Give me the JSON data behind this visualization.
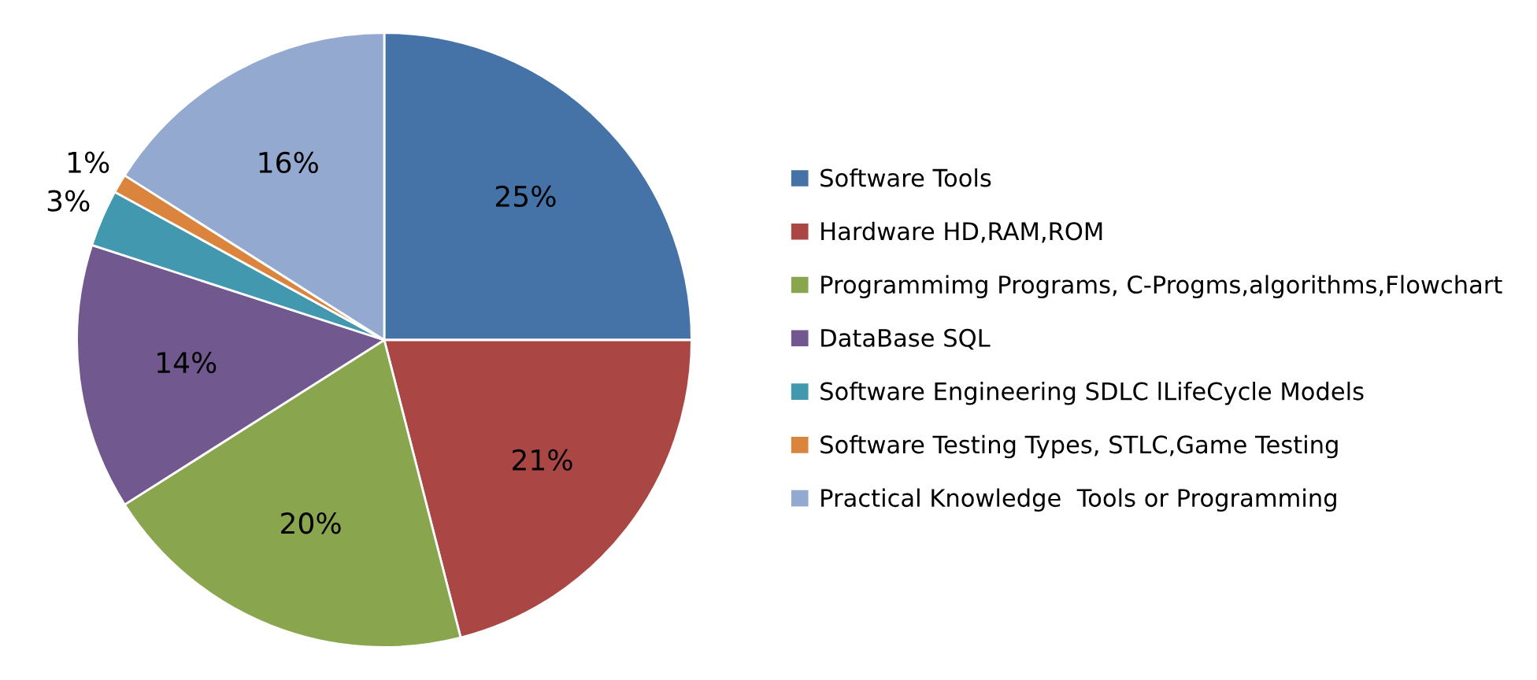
{
  "chart_data": {
    "type": "pie",
    "categories": [
      "Software Tools",
      "Hardware HD,RAM,ROM",
      "Programmimg Programs, C-Progms,algorithms,Flowchart",
      "DataBase SQL",
      "Software Engineering SDLC lLifeCycle Models",
      "Software Testing Types, STLC,Game Testing",
      "Practical Knowledge  Tools or Programming"
    ],
    "values": [
      25,
      21,
      20,
      14,
      3,
      1,
      16
    ],
    "colors": [
      "#4572a7",
      "#aa4643",
      "#89a54e",
      "#71588f",
      "#4198af",
      "#db843d",
      "#93a9cf"
    ],
    "value_labels": [
      "25%",
      "21%",
      "20%",
      "14%",
      "3%",
      "1%",
      "16%"
    ],
    "legend": "right"
  }
}
